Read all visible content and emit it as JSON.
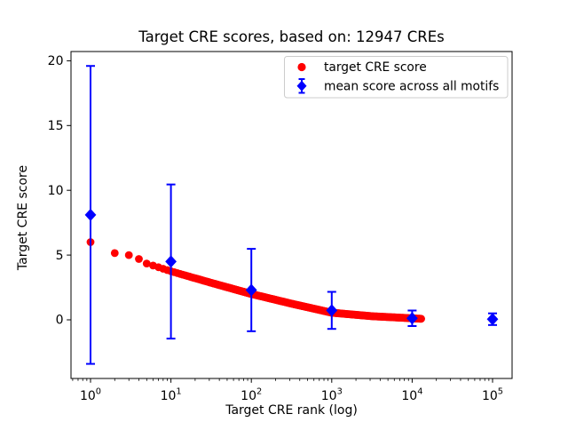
{
  "figure": {
    "title": "Target CRE scores, based on: 12947 CREs",
    "xlabel": "Target CRE rank (log)",
    "ylabel": "Target CRE score"
  },
  "legend": {
    "entries": [
      {
        "label": "target CRE score",
        "marker": "red-circle",
        "color": "#ff0000"
      },
      {
        "label": "mean score across all motifs",
        "marker": "blue-diamond-errorbar",
        "color": "#0000ff"
      }
    ]
  },
  "axes": {
    "x_scale": "log10",
    "x_tick_exponents": [
      0,
      1,
      2,
      3,
      4,
      5
    ],
    "y_ticks": [
      0,
      5,
      10,
      15,
      20
    ],
    "xlim_log10": [
      -0.25,
      5.25
    ],
    "ylim": [
      -4.53,
      20.71
    ],
    "grid": false
  },
  "chart_data": {
    "type": "scatter",
    "title": "Target CRE scores, based on: 12947 CREs",
    "xlabel": "Target CRE rank (log)",
    "ylabel": "Target CRE score",
    "x_axis": "log10, range 1 to 1e5",
    "series": [
      {
        "name": "target CRE score",
        "type": "scatter",
        "color": "#ff0000",
        "marker": "circle",
        "n_points": 12947,
        "anchor_points": [
          [
            1,
            6.0
          ],
          [
            2,
            5.15
          ],
          [
            3,
            5.0
          ],
          [
            4,
            4.7
          ],
          [
            5,
            4.35
          ],
          [
            10,
            3.75
          ],
          [
            32,
            2.85
          ],
          [
            100,
            2.0
          ],
          [
            316,
            1.25
          ],
          [
            1000,
            0.55
          ],
          [
            3162,
            0.28
          ],
          [
            10000,
            0.12
          ],
          [
            12947,
            0.08
          ]
        ]
      },
      {
        "name": "mean score across all motifs",
        "type": "errorbar",
        "color": "#0000ff",
        "marker": "diamond",
        "x": [
          1,
          10,
          100,
          1000,
          10000,
          100000
        ],
        "mean": [
          8.1,
          4.5,
          2.3,
          0.73,
          0.12,
          0.05
        ],
        "err": [
          11.5,
          5.95,
          3.18,
          1.43,
          0.6,
          0.45
        ]
      }
    ],
    "legend_position": "upper center-right inside axes"
  }
}
